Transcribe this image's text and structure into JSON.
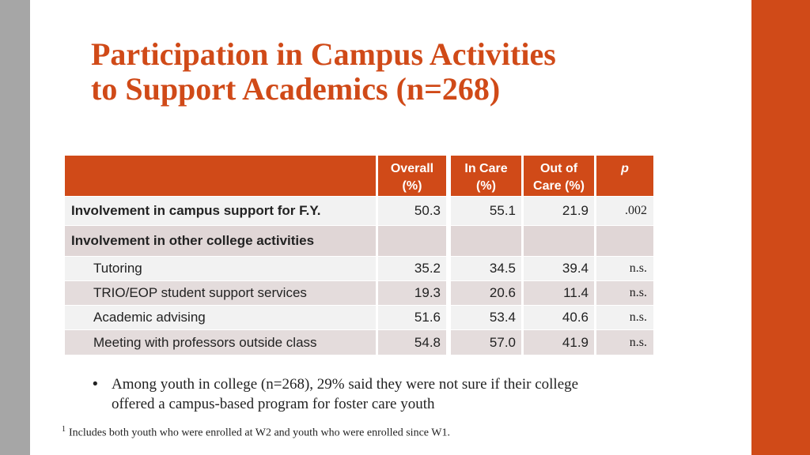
{
  "slide": {
    "title_line1": "Participation in Campus Activities",
    "title_line2": "to Support Academics (n=268)",
    "colors": {
      "accent": "#d04a18",
      "left_bar": "#a6a6a6"
    }
  },
  "table": {
    "headers": {
      "overall_l1": "Overall",
      "overall_l2": "(%)",
      "incare_l1": "In Care",
      "incare_l2": "(%)",
      "outcare_l1": "Out of",
      "outcare_l2": "Care (%)",
      "p": "p"
    },
    "rows": [
      {
        "label": "Involvement in campus support for F.Y.",
        "overall": "50.3",
        "in_care": "55.1",
        "out_care": "21.9",
        "p": ".002"
      },
      {
        "label": "Involvement in other college activities",
        "overall": "",
        "in_care": "",
        "out_care": "",
        "p": ""
      },
      {
        "label": "Tutoring",
        "overall": "35.2",
        "in_care": "34.5",
        "out_care": "39.4",
        "p": "n.s."
      },
      {
        "label": "TRIO/EOP student support services",
        "overall": "19.3",
        "in_care": "20.6",
        "out_care": "11.4",
        "p": "n.s."
      },
      {
        "label": "Academic advising",
        "overall": "51.6",
        "in_care": "53.4",
        "out_care": "40.6",
        "p": "n.s."
      },
      {
        "label": "Meeting with professors outside class",
        "overall": "54.8",
        "in_care": "57.0",
        "out_care": "41.9",
        "p": "n.s."
      }
    ]
  },
  "bullet": {
    "marker": "•",
    "line1": "Among youth in college (n=268), 29% said they were not sure if their college",
    "line2": "offered a campus-based program for foster care youth"
  },
  "footnote": {
    "marker": "1",
    "text": "Includes both youth who were enrolled at W2 and youth who were enrolled since W1."
  }
}
